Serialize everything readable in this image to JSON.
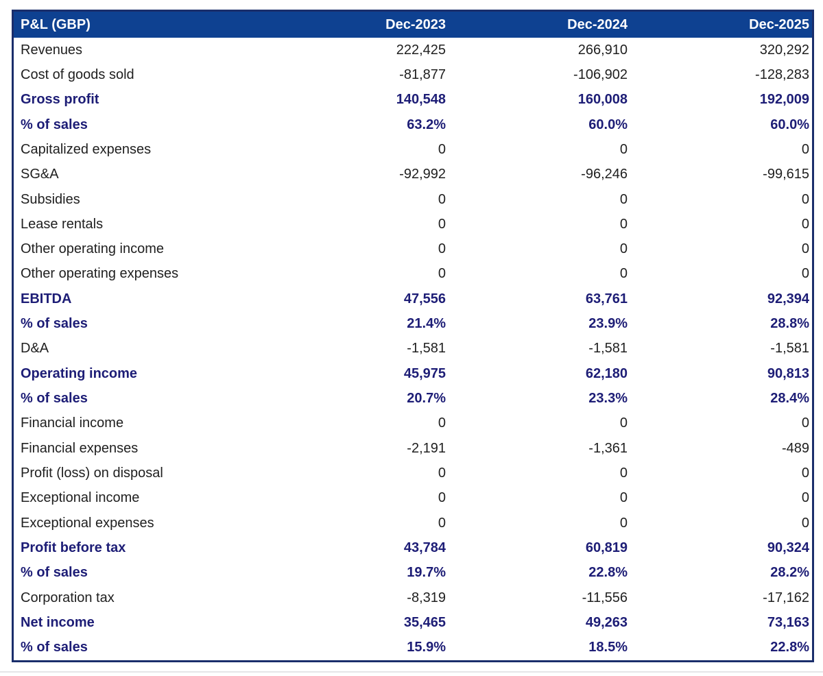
{
  "chart_data": {
    "type": "table",
    "title": "P&L (GBP)",
    "columns": [
      "Dec-2023",
      "Dec-2024",
      "Dec-2025"
    ],
    "rows": [
      {
        "label": "Revenues",
        "values": [
          "222,425",
          "266,910",
          "320,292"
        ],
        "emphasis": false
      },
      {
        "label": "Cost of goods sold",
        "values": [
          "-81,877",
          "-106,902",
          "-128,283"
        ],
        "emphasis": false
      },
      {
        "label": "Gross profit",
        "values": [
          "140,548",
          "160,008",
          "192,009"
        ],
        "emphasis": true
      },
      {
        "label": "% of sales",
        "values": [
          "63.2%",
          "60.0%",
          "60.0%"
        ],
        "emphasis": true
      },
      {
        "label": "Capitalized expenses",
        "values": [
          "0",
          "0",
          "0"
        ],
        "emphasis": false
      },
      {
        "label": "SG&A",
        "values": [
          "-92,992",
          "-96,246",
          "-99,615"
        ],
        "emphasis": false
      },
      {
        "label": "Subsidies",
        "values": [
          "0",
          "0",
          "0"
        ],
        "emphasis": false
      },
      {
        "label": "Lease rentals",
        "values": [
          "0",
          "0",
          "0"
        ],
        "emphasis": false
      },
      {
        "label": "Other operating income",
        "values": [
          "0",
          "0",
          "0"
        ],
        "emphasis": false
      },
      {
        "label": "Other operating expenses",
        "values": [
          "0",
          "0",
          "0"
        ],
        "emphasis": false
      },
      {
        "label": "EBITDA",
        "values": [
          "47,556",
          "63,761",
          "92,394"
        ],
        "emphasis": true
      },
      {
        "label": "% of sales",
        "values": [
          "21.4%",
          "23.9%",
          "28.8%"
        ],
        "emphasis": true
      },
      {
        "label": "D&A",
        "values": [
          "-1,581",
          "-1,581",
          "-1,581"
        ],
        "emphasis": false
      },
      {
        "label": "Operating income",
        "values": [
          "45,975",
          "62,180",
          "90,813"
        ],
        "emphasis": true
      },
      {
        "label": "% of sales",
        "values": [
          "20.7%",
          "23.3%",
          "28.4%"
        ],
        "emphasis": true
      },
      {
        "label": "Financial income",
        "values": [
          "0",
          "0",
          "0"
        ],
        "emphasis": false
      },
      {
        "label": "Financial expenses",
        "values": [
          "-2,191",
          "-1,361",
          "-489"
        ],
        "emphasis": false
      },
      {
        "label": "Profit (loss) on disposal",
        "values": [
          "0",
          "0",
          "0"
        ],
        "emphasis": false
      },
      {
        "label": "Exceptional income",
        "values": [
          "0",
          "0",
          "0"
        ],
        "emphasis": false
      },
      {
        "label": "Exceptional expenses",
        "values": [
          "0",
          "0",
          "0"
        ],
        "emphasis": false
      },
      {
        "label": "Profit before tax",
        "values": [
          "43,784",
          "60,819",
          "90,324"
        ],
        "emphasis": true
      },
      {
        "label": "% of sales",
        "values": [
          "19.7%",
          "22.8%",
          "28.2%"
        ],
        "emphasis": true
      },
      {
        "label": "Corporation tax",
        "values": [
          "-8,319",
          "-11,556",
          "-17,162"
        ],
        "emphasis": false
      },
      {
        "label": "Net income",
        "values": [
          "35,465",
          "49,263",
          "73,163"
        ],
        "emphasis": true
      },
      {
        "label": "% of sales",
        "values": [
          "15.9%",
          "18.5%",
          "22.8%"
        ],
        "emphasis": true
      }
    ],
    "layout": {
      "grid": false,
      "header_position": "top",
      "numeric_alignment": "right"
    }
  },
  "colors": {
    "header_background": "#0E4191",
    "header_text": "#FFFFFF",
    "table_border": "#1A2E6B",
    "emphasis_text": "#1D1D76",
    "body_text": "#202020",
    "row_background": "#FFFFFF"
  }
}
